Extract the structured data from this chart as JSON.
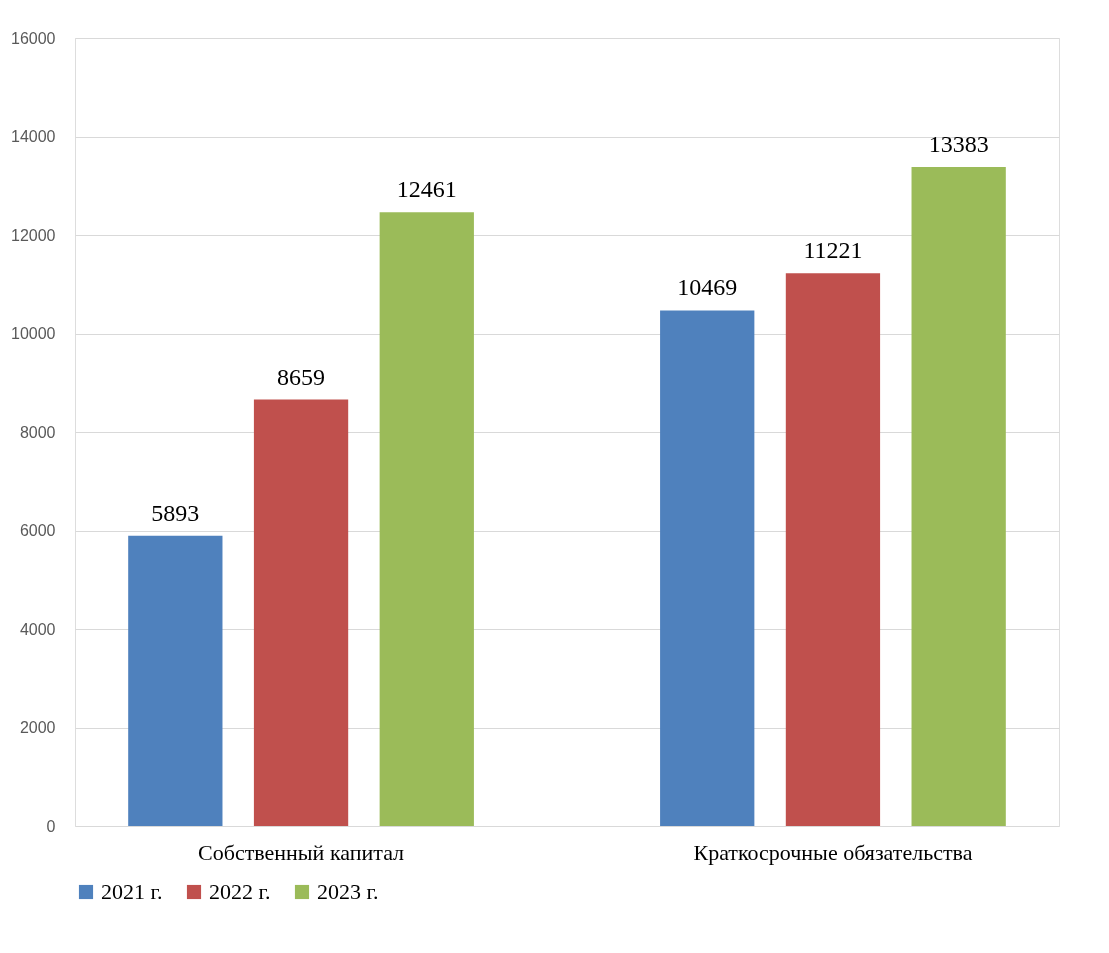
{
  "chart_data": {
    "type": "bar",
    "categories": [
      "Собственный капитал",
      "Краткосрочные обязательства"
    ],
    "series": [
      {
        "name": "2021 г.",
        "color": "#4f81bd",
        "values": [
          5893,
          10469
        ]
      },
      {
        "name": "2022 г.",
        "color": "#c0504d",
        "values": [
          8659,
          11221
        ]
      },
      {
        "name": "2023 г.",
        "color": "#9bbb59",
        "values": [
          12461,
          13383
        ]
      }
    ],
    "ylim": [
      0,
      16000
    ],
    "yticks": [
      0,
      2000,
      4000,
      6000,
      8000,
      10000,
      12000,
      14000,
      16000
    ],
    "grid": "y",
    "legend": "bottom",
    "data_labels": true
  }
}
